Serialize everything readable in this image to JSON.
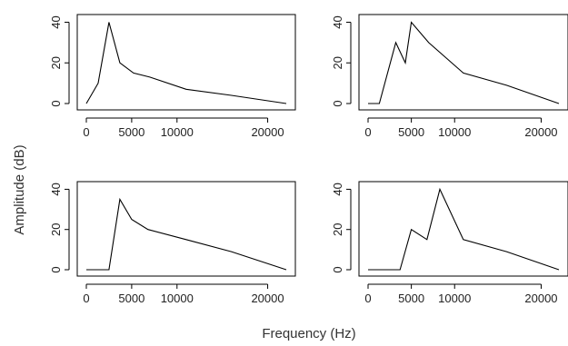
{
  "figure": {
    "xlabel": "Frequency (Hz)",
    "ylabel": "Amplitude (dB)"
  },
  "chart_data": [
    {
      "type": "line",
      "xlim": [
        0,
        22050
      ],
      "ylim": [
        0,
        42
      ],
      "x_ticks": [
        0,
        5000,
        10000,
        20000
      ],
      "y_ticks": [
        0,
        20,
        40
      ],
      "x_tick_labels": [
        "0",
        "5000",
        "10000",
        "20000"
      ],
      "y_tick_labels": [
        "0",
        "20",
        "40"
      ],
      "x": [
        0,
        1300,
        2500,
        3700,
        5200,
        7000,
        11000,
        16000,
        22050
      ],
      "values": [
        0,
        10,
        40,
        20,
        15,
        13,
        7,
        4,
        0
      ]
    },
    {
      "type": "line",
      "xlim": [
        0,
        22050
      ],
      "ylim": [
        0,
        42
      ],
      "x_ticks": [
        0,
        5000,
        10000,
        20000
      ],
      "y_ticks": [
        0,
        20,
        40
      ],
      "x_tick_labels": [
        "0",
        "5000",
        "10000",
        "20000"
      ],
      "y_tick_labels": [
        "0",
        "20",
        "40"
      ],
      "x": [
        0,
        1300,
        3200,
        4300,
        5000,
        7000,
        11000,
        16000,
        22050
      ],
      "values": [
        0,
        0,
        30,
        20,
        40,
        30,
        15,
        9,
        0
      ]
    },
    {
      "type": "line",
      "xlim": [
        0,
        22050
      ],
      "ylim": [
        0,
        42
      ],
      "x_ticks": [
        0,
        5000,
        10000,
        20000
      ],
      "y_ticks": [
        0,
        20,
        40
      ],
      "x_tick_labels": [
        "0",
        "5000",
        "10000",
        "20000"
      ],
      "y_tick_labels": [
        "0",
        "20",
        "40"
      ],
      "x": [
        0,
        2500,
        3700,
        5000,
        6800,
        11000,
        16000,
        22050
      ],
      "values": [
        0,
        0,
        35,
        25,
        20,
        15,
        9,
        0
      ]
    },
    {
      "type": "line",
      "xlim": [
        0,
        22050
      ],
      "ylim": [
        0,
        42
      ],
      "x_ticks": [
        0,
        5000,
        10000,
        20000
      ],
      "y_ticks": [
        0,
        20,
        40
      ],
      "x_tick_labels": [
        "0",
        "5000",
        "10000",
        "20000"
      ],
      "y_tick_labels": [
        "0",
        "20",
        "40"
      ],
      "x": [
        0,
        3700,
        5000,
        6800,
        8300,
        11000,
        16000,
        22050
      ],
      "values": [
        0,
        0,
        20,
        15,
        40,
        15,
        9,
        0
      ]
    }
  ]
}
